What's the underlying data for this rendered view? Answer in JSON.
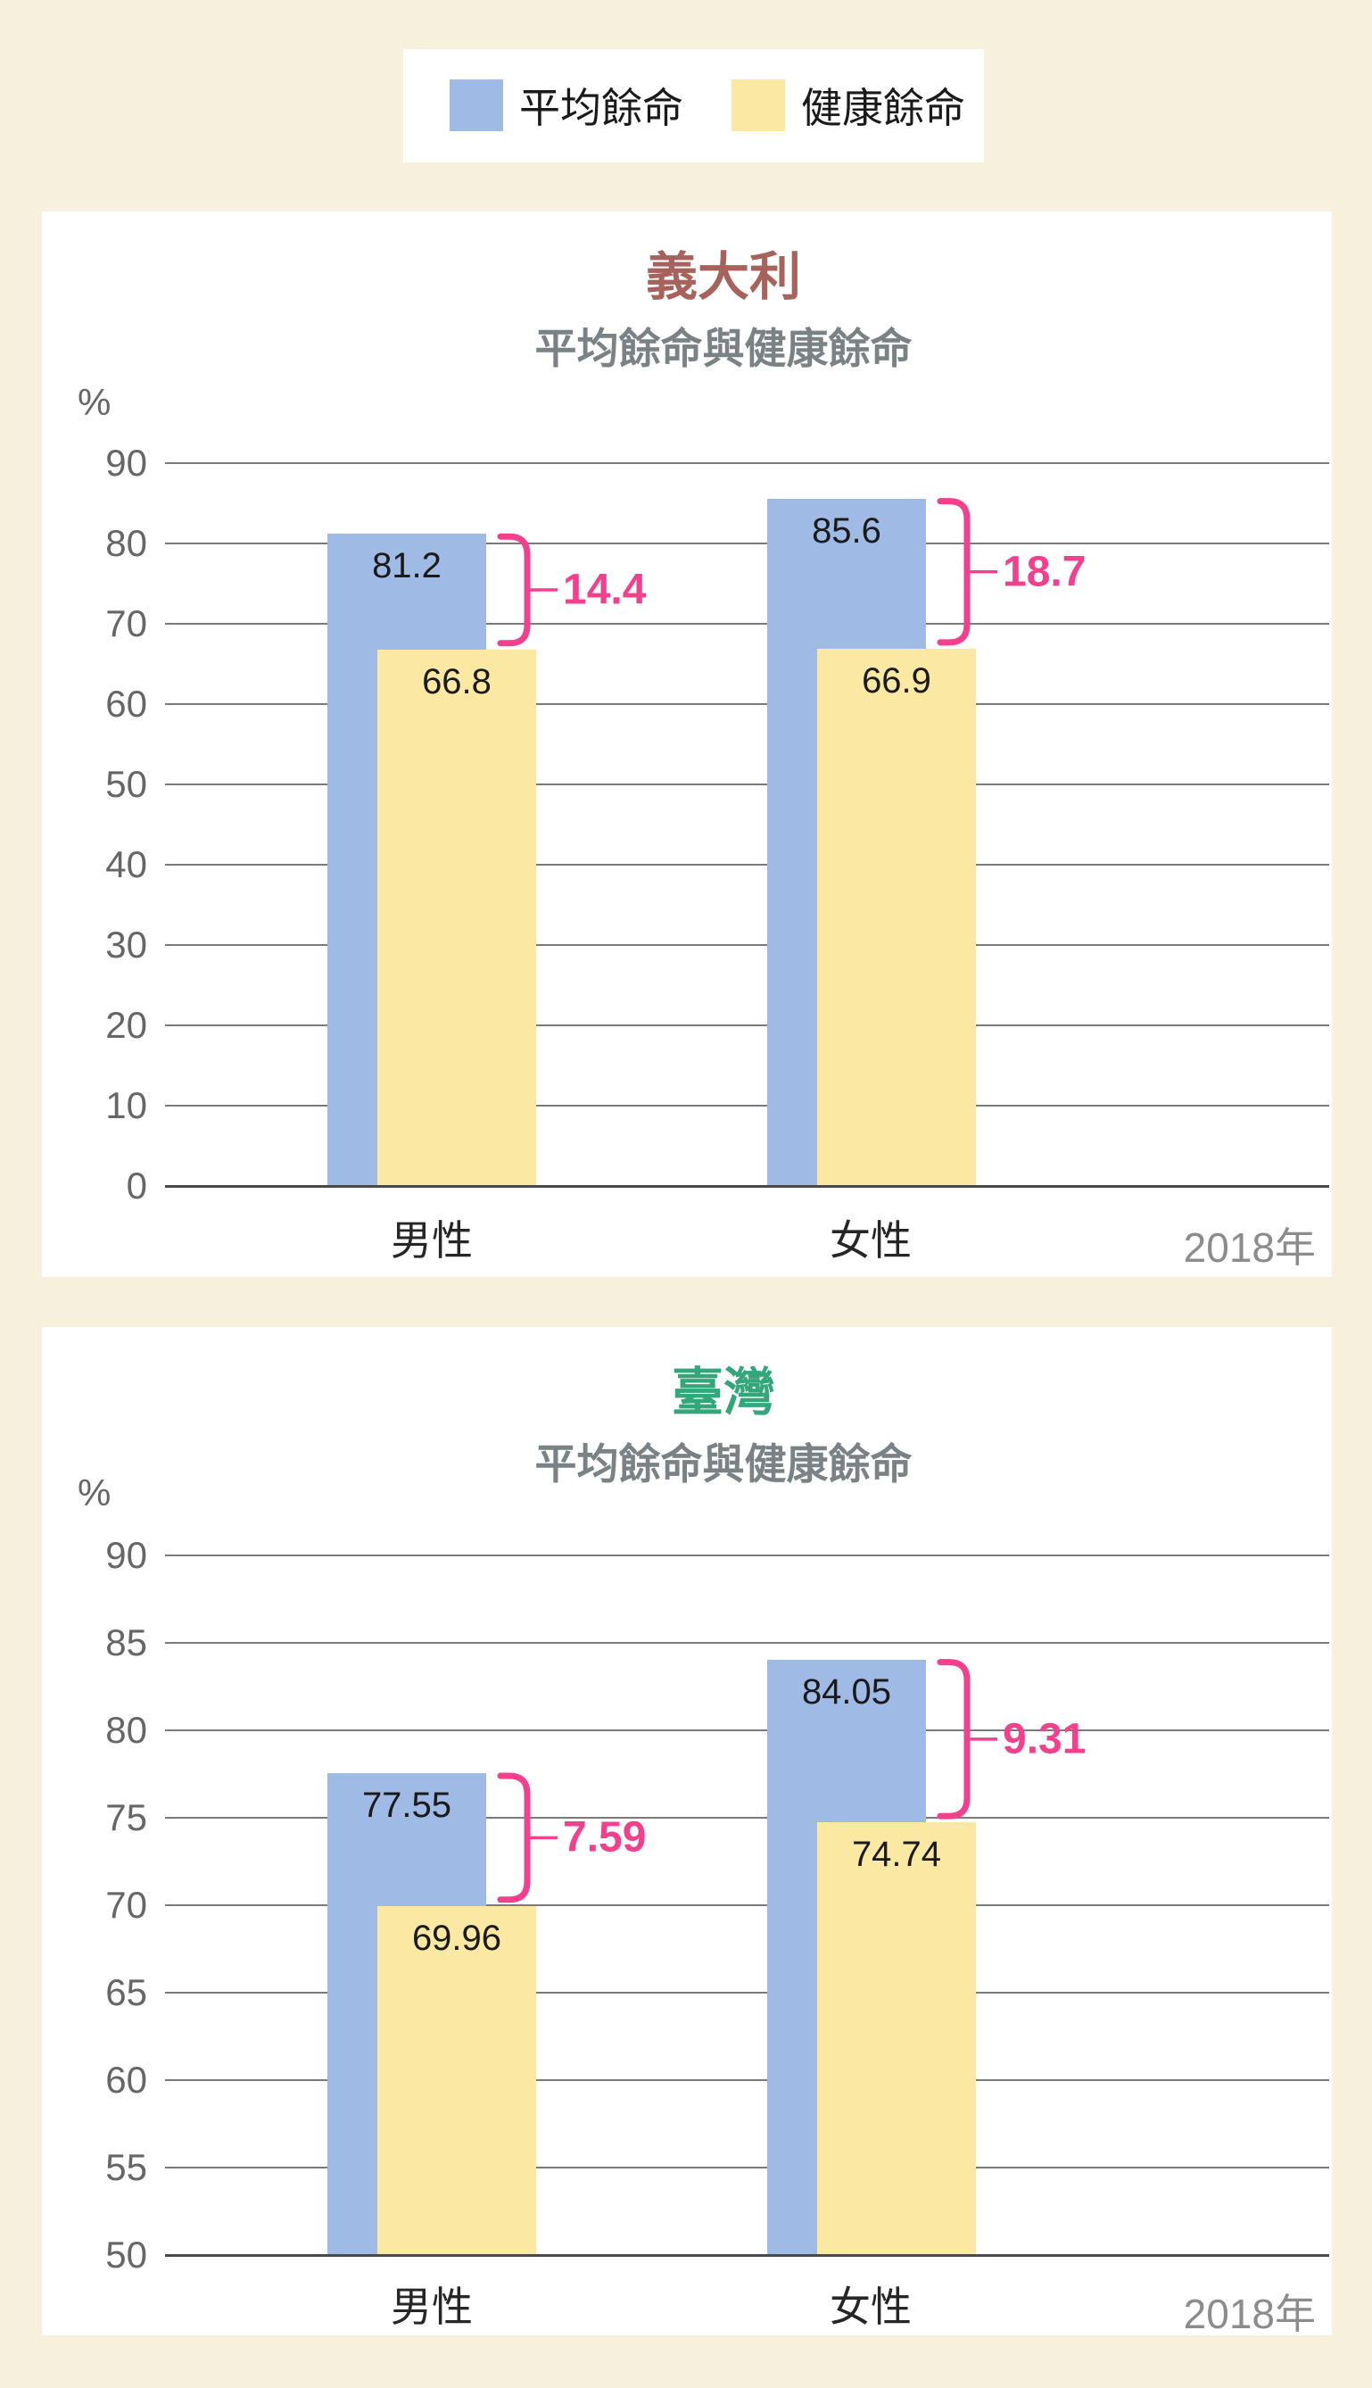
{
  "page": {
    "year_label": "2018年"
  },
  "colors": {
    "page_background": "#f7f0dc",
    "panel_background": "#ffffff",
    "life_expectancy_blue": "#a0bae6",
    "healthy_life_yellow": "#fbe8a2",
    "gap_pink": "#f3408c",
    "italy_title_red": "#a8625c",
    "taiwan_title_green": "#34a67c",
    "subtitle_gray": "#7b8285",
    "axis_text_gray": "#666666",
    "gridline_gray": "#7a7a7a",
    "baseline_dark": "#4a4a4a",
    "value_text_black": "#1a1a1a",
    "year_text_gray": "#8c8c8c"
  },
  "legend": {
    "items": [
      {
        "label": "平均餘命",
        "color": "#a0bae6"
      },
      {
        "label": "健康餘命",
        "color": "#fbe8a2"
      }
    ]
  },
  "chart_data": [
    {
      "type": "bar",
      "title": "義大利",
      "title_color": "#a8625c",
      "subtitle": "平均餘命與健康餘命",
      "unit_label": "%",
      "year_label": "2018年",
      "categories": [
        "男性",
        "女性"
      ],
      "series": [
        {
          "name": "平均餘命",
          "color": "#a0bae6",
          "values": [
            81.2,
            85.6
          ]
        },
        {
          "name": "健康餘命",
          "color": "#fbe8a2",
          "values": [
            66.8,
            66.9
          ]
        }
      ],
      "gap_labels": [
        "14.4",
        "18.7"
      ],
      "gap_color": "#f3408c",
      "ylim": [
        0,
        90
      ],
      "yticks": [
        90,
        80,
        70,
        60,
        50,
        40,
        30,
        20,
        10,
        0
      ],
      "grid": true,
      "legend_position": "top-shared"
    },
    {
      "type": "bar",
      "title": "臺灣",
      "title_color": "#34a67c",
      "subtitle": "平均餘命與健康餘命",
      "unit_label": "%",
      "year_label": "2018年",
      "categories": [
        "男性",
        "女性"
      ],
      "series": [
        {
          "name": "平均餘命",
          "color": "#a0bae6",
          "values": [
            77.55,
            84.05
          ]
        },
        {
          "name": "健康餘命",
          "color": "#fbe8a2",
          "values": [
            69.96,
            74.74
          ]
        }
      ],
      "gap_labels": [
        "7.59",
        "9.31"
      ],
      "gap_color": "#f3408c",
      "ylim": [
        50,
        90
      ],
      "yticks": [
        90,
        85,
        80,
        75,
        70,
        65,
        60,
        55,
        50
      ],
      "grid": true,
      "legend_position": "top-shared"
    }
  ]
}
